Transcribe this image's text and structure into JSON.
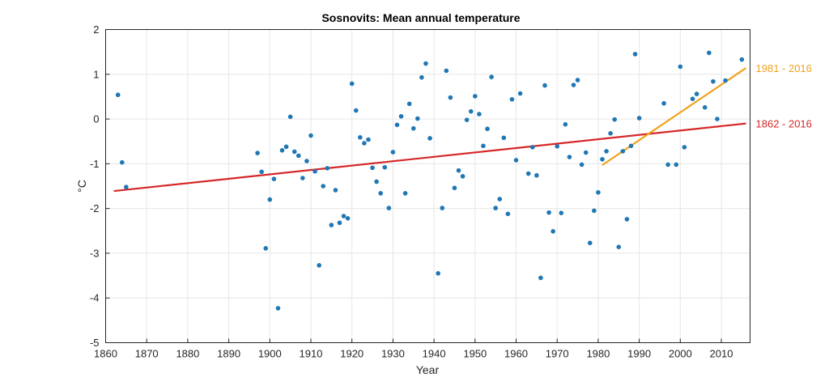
{
  "chart_data": {
    "type": "scatter",
    "title": "Sosnovits: Mean annual temperature",
    "xlabel": "Year",
    "ylabel": "°C",
    "xlim": [
      1860,
      2017
    ],
    "ylim": [
      -5,
      2
    ],
    "xticks": [
      1860,
      1870,
      1880,
      1890,
      1900,
      1910,
      1920,
      1930,
      1940,
      1950,
      1960,
      1970,
      1980,
      1990,
      2000,
      2010
    ],
    "yticks": [
      -5,
      -4,
      -3,
      -2,
      -1,
      0,
      1,
      2
    ],
    "grid": true,
    "point_color": "#1f77b4",
    "points": [
      [
        1863,
        0.54
      ],
      [
        1864,
        -0.97
      ],
      [
        1865,
        -1.52
      ],
      [
        1897,
        -0.76
      ],
      [
        1898,
        -1.18
      ],
      [
        1899,
        -2.89
      ],
      [
        1900,
        -1.8
      ],
      [
        1901,
        -1.34
      ],
      [
        1902,
        -4.23
      ],
      [
        1903,
        -0.7
      ],
      [
        1904,
        -0.62
      ],
      [
        1905,
        0.05
      ],
      [
        1906,
        -0.73
      ],
      [
        1907,
        -0.82
      ],
      [
        1908,
        -1.32
      ],
      [
        1909,
        -0.94
      ],
      [
        1910,
        -0.37
      ],
      [
        1911,
        -1.17
      ],
      [
        1912,
        -3.27
      ],
      [
        1913,
        -1.5
      ],
      [
        1914,
        -1.1
      ],
      [
        1915,
        -2.37
      ],
      [
        1916,
        -1.59
      ],
      [
        1917,
        -2.32
      ],
      [
        1918,
        -2.17
      ],
      [
        1919,
        -2.22
      ],
      [
        1920,
        0.79
      ],
      [
        1921,
        0.19
      ],
      [
        1922,
        -0.41
      ],
      [
        1923,
        -0.54
      ],
      [
        1924,
        -0.46
      ],
      [
        1925,
        -1.09
      ],
      [
        1926,
        -1.4
      ],
      [
        1927,
        -1.66
      ],
      [
        1928,
        -1.08
      ],
      [
        1929,
        -1.99
      ],
      [
        1930,
        -0.74
      ],
      [
        1931,
        -0.13
      ],
      [
        1932,
        0.06
      ],
      [
        1933,
        -1.66
      ],
      [
        1934,
        0.34
      ],
      [
        1935,
        -0.21
      ],
      [
        1936,
        0.01
      ],
      [
        1937,
        0.93
      ],
      [
        1938,
        1.24
      ],
      [
        1939,
        -0.43
      ],
      [
        1941,
        -3.45
      ],
      [
        1942,
        -1.99
      ],
      [
        1943,
        1.08
      ],
      [
        1944,
        0.48
      ],
      [
        1945,
        -1.54
      ],
      [
        1946,
        -1.15
      ],
      [
        1947,
        -1.28
      ],
      [
        1948,
        -0.02
      ],
      [
        1949,
        0.17
      ],
      [
        1950,
        0.51
      ],
      [
        1951,
        0.11
      ],
      [
        1952,
        -0.6
      ],
      [
        1953,
        -0.22
      ],
      [
        1954,
        0.94
      ],
      [
        1955,
        -1.99
      ],
      [
        1956,
        -1.79
      ],
      [
        1957,
        -0.42
      ],
      [
        1958,
        -2.12
      ],
      [
        1959,
        0.44
      ],
      [
        1960,
        -0.92
      ],
      [
        1961,
        0.57
      ],
      [
        1963,
        -1.22
      ],
      [
        1964,
        -0.63
      ],
      [
        1965,
        -1.26
      ],
      [
        1966,
        -3.55
      ],
      [
        1967,
        0.75
      ],
      [
        1968,
        -2.09
      ],
      [
        1969,
        -2.51
      ],
      [
        1970,
        -0.61
      ],
      [
        1971,
        -2.1
      ],
      [
        1972,
        -0.12
      ],
      [
        1973,
        -0.85
      ],
      [
        1974,
        0.76
      ],
      [
        1975,
        0.87
      ],
      [
        1976,
        -1.02
      ],
      [
        1977,
        -0.75
      ],
      [
        1978,
        -2.77
      ],
      [
        1979,
        -2.05
      ],
      [
        1980,
        -1.64
      ],
      [
        1981,
        -0.9
      ],
      [
        1982,
        -0.72
      ],
      [
        1983,
        -0.32
      ],
      [
        1984,
        -0.01
      ],
      [
        1985,
        -2.86
      ],
      [
        1986,
        -0.72
      ],
      [
        1987,
        -2.24
      ],
      [
        1988,
        -0.6
      ],
      [
        1989,
        1.45
      ],
      [
        1990,
        0.02
      ],
      [
        1996,
        0.35
      ],
      [
        1997,
        -1.02
      ],
      [
        1999,
        -1.02
      ],
      [
        2000,
        1.17
      ],
      [
        2001,
        -0.63
      ],
      [
        2003,
        0.45
      ],
      [
        2004,
        0.56
      ],
      [
        2006,
        0.26
      ],
      [
        2007,
        1.48
      ],
      [
        2008,
        0.84
      ],
      [
        2009,
        0.0
      ],
      [
        2011,
        0.86
      ],
      [
        2015,
        1.33
      ]
    ],
    "trends": [
      {
        "label": "1862 - 2016",
        "color": "#d62728",
        "x": [
          1862,
          2016
        ],
        "y": [
          -1.61,
          -0.1
        ]
      },
      {
        "label": "1981 - 2016",
        "color": "#f0a21c",
        "x": [
          1981,
          2016
        ],
        "y": [
          -1.03,
          1.14
        ]
      }
    ]
  }
}
